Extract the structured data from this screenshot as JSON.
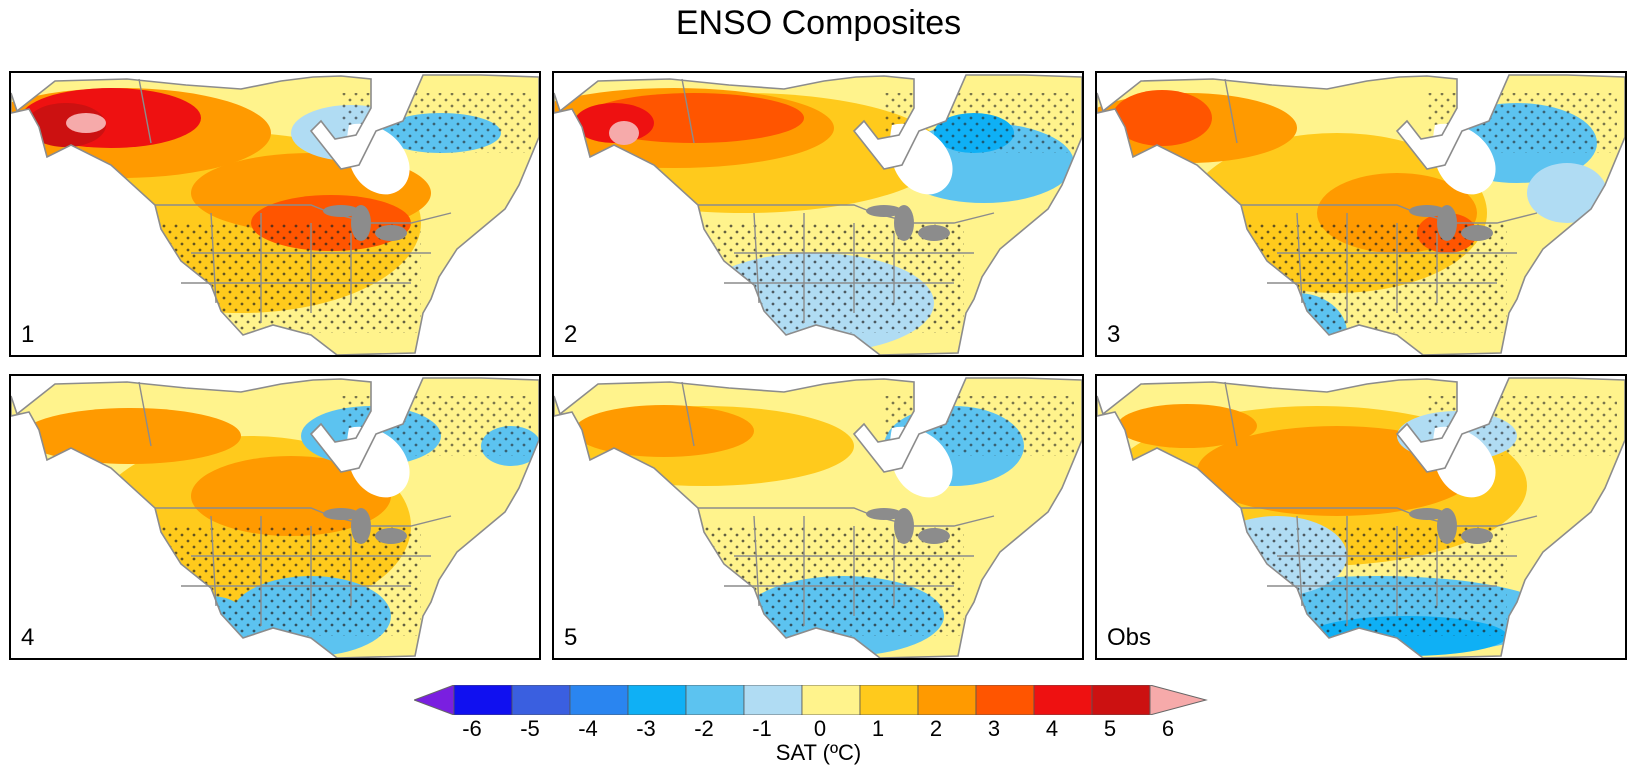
{
  "title": "ENSO Composites",
  "colors": {
    "bins": [
      "#7a1fe0",
      "#1010f0",
      "#3a5fe0",
      "#2a85f0",
      "#0fb0f5",
      "#5cc3f0",
      "#b0dcf3",
      "#fff38c",
      "#ffca1c",
      "#ff9a00",
      "#ff5500",
      "#ee1111",
      "#cc1111",
      "#f6aaaa"
    ],
    "land_outline": "#8c8c8c",
    "stipple": "#222222"
  },
  "panels": [
    {
      "label": "1",
      "mode": 1
    },
    {
      "label": "2",
      "mode": 2
    },
    {
      "label": "3",
      "mode": 3
    },
    {
      "label": "4",
      "mode": 4
    },
    {
      "label": "5",
      "mode": 5
    },
    {
      "label": "Obs",
      "mode": 6
    }
  ],
  "colorbar": {
    "ticks": [
      "-6",
      "-5",
      "-4",
      "-3",
      "-2",
      "-1",
      "0",
      "1",
      "2",
      "3",
      "4",
      "5",
      "6"
    ],
    "label": "SAT (ºC)"
  }
}
